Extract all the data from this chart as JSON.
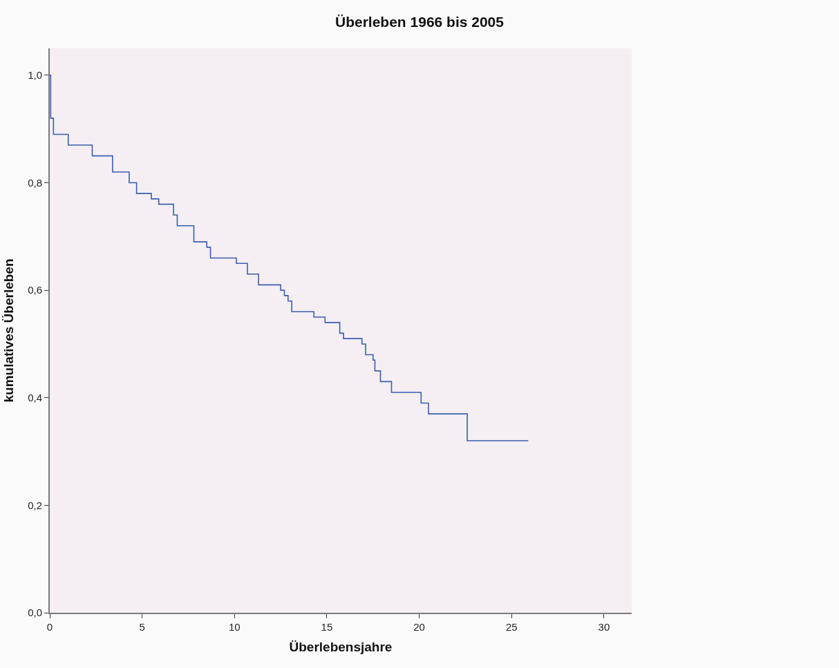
{
  "chart_data": {
    "type": "step",
    "title": "Überleben 1966 bis 2005",
    "xlabel": "Überlebensjahre",
    "ylabel": "kumulatives Überleben",
    "x": [
      0,
      0.05,
      0.2,
      1.0,
      2.3,
      3.4,
      4.3,
      4.7,
      5.5,
      5.9,
      6.7,
      6.9,
      7.8,
      8.5,
      8.7,
      10.1,
      10.7,
      11.3,
      12.5,
      12.7,
      12.9,
      13.1,
      14.3,
      14.9,
      15.7,
      15.9,
      16.9,
      17.1,
      17.5,
      17.6,
      17.9,
      18.5,
      20.1,
      20.5,
      22.6,
      25.9
    ],
    "series": [
      {
        "color": "#3a5fb0",
        "values": [
          1.0,
          0.92,
          0.89,
          0.87,
          0.85,
          0.82,
          0.8,
          0.78,
          0.77,
          0.76,
          0.74,
          0.72,
          0.69,
          0.68,
          0.66,
          0.65,
          0.63,
          0.61,
          0.6,
          0.59,
          0.58,
          0.56,
          0.55,
          0.54,
          0.52,
          0.51,
          0.5,
          0.48,
          0.47,
          0.45,
          0.43,
          0.41,
          0.39,
          0.37,
          0.32,
          0.32
        ]
      }
    ],
    "xlim": [
      0,
      31.5
    ],
    "xticks": [
      0,
      5,
      10,
      15,
      20,
      25,
      30
    ],
    "ylim": [
      0,
      1.05
    ],
    "yticks": [
      {
        "value": 0,
        "label": "0,0"
      },
      {
        "value": 0.2,
        "label": "0,2"
      },
      {
        "value": 0.4,
        "label": "0,4"
      },
      {
        "value": 0.6,
        "label": "0,6"
      },
      {
        "value": 0.8,
        "label": "0,8"
      },
      {
        "value": 1.0,
        "label": "1,0"
      }
    ],
    "grid": false,
    "legend": false,
    "marker": "none",
    "line_style": "solid"
  }
}
